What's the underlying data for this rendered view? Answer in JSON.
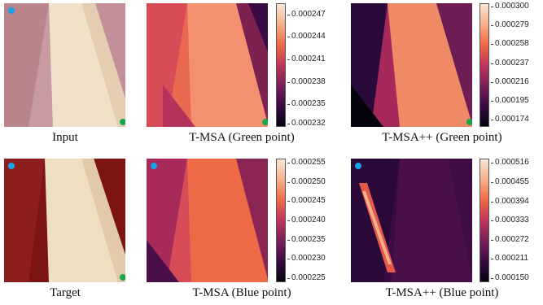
{
  "captions": {
    "input": "Input",
    "target": "Target",
    "tmsa_green": "T-MSA (Green point)",
    "tmsapp_green": "T-MSA++ (Green point)",
    "tmsa_blue": "T-MSA (Blue point)",
    "tmsapp_blue": "T-MSA++ (Blue point)"
  },
  "colorbars": {
    "tmsa_green": [
      "0.000247",
      "0.000244",
      "0.000241",
      "0.000238",
      "0.000235",
      "0.000232"
    ],
    "tmsapp_green": [
      "0.000300",
      "0.000279",
      "0.000258",
      "0.000237",
      "0.000216",
      "0.000195",
      "0.000174"
    ],
    "tmsa_blue": [
      "0.000255",
      "0.000250",
      "0.000245",
      "0.000240",
      "0.000235",
      "0.000230",
      "0.000225"
    ],
    "tmsapp_blue": [
      "0.000516",
      "0.000455",
      "0.000394",
      "0.000333",
      "0.000272",
      "0.000211",
      "0.000150"
    ]
  },
  "colors": {
    "green_point": "#1aa64a",
    "blue_point": "#1aa3e8",
    "colormap": [
      "#05030e",
      "#3a0a45",
      "#7a1f5b",
      "#c0355a",
      "#ee6a46",
      "#f6b08a",
      "#fbe6d6"
    ]
  }
}
